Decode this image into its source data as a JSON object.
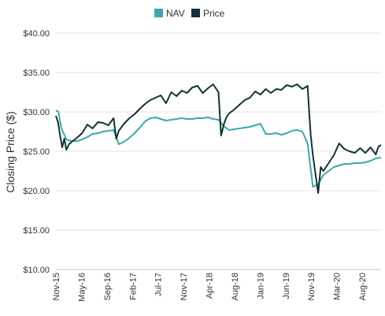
{
  "chart_data": {
    "type": "line",
    "title": "",
    "xlabel": "",
    "ylabel": "Closing Price ($)",
    "ylim": [
      10,
      40
    ],
    "yticks": [
      10,
      15,
      20,
      25,
      30,
      35,
      40
    ],
    "ytick_labels": [
      "$10.00",
      "$15.00",
      "$20.00",
      "$25.00",
      "$30.00",
      "$35.00",
      "$40.00"
    ],
    "x_range": [
      "Nov-15",
      "Jan-21"
    ],
    "xtick_labels": [
      "Nov-15",
      "May-16",
      "Sep-16",
      "Feb-17",
      "Jul-17",
      "Nov-17",
      "Apr-18",
      "Aug-18",
      "Jan-19",
      "Jun-19",
      "Nov-19",
      "Mar-20",
      "Aug-20"
    ],
    "grid": true,
    "legend_position": "top-center",
    "series": [
      {
        "name": "NAV",
        "color": "#3aa8ad",
        "x": [
          0,
          0.5,
          1,
          2,
          3,
          4,
          5,
          6,
          7,
          8,
          9,
          10,
          11,
          12,
          13,
          14,
          15,
          16,
          17,
          18,
          19,
          20,
          21,
          22,
          23,
          24,
          25,
          26,
          27,
          28,
          29,
          30,
          31,
          32,
          33,
          34,
          35,
          36,
          37,
          38,
          39,
          40,
          41,
          42,
          43,
          44,
          45,
          46,
          47,
          48,
          49,
          50,
          51,
          52,
          53,
          54,
          55,
          56,
          57,
          58,
          59,
          60,
          61,
          62
        ],
        "y": [
          30.2,
          30.0,
          28.0,
          26.5,
          26.3,
          26.3,
          26.5,
          26.8,
          27.2,
          27.3,
          27.5,
          27.6,
          27.7,
          25.9,
          26.2,
          26.7,
          27.3,
          28.0,
          28.8,
          29.2,
          29.3,
          29.1,
          28.9,
          29.0,
          29.1,
          29.2,
          29.1,
          29.1,
          29.2,
          29.2,
          29.3,
          29.1,
          29.0,
          28.2,
          27.7,
          27.8,
          27.9,
          28.0,
          28.1,
          28.3,
          28.5,
          27.2,
          27.2,
          27.3,
          27.1,
          27.3,
          27.6,
          27.7,
          27.5,
          26.0,
          20.5,
          20.8,
          22.0,
          22.5,
          23.0,
          23.2,
          23.4,
          23.4,
          23.5,
          23.5,
          23.6,
          23.8,
          24.1,
          24.2
        ]
      },
      {
        "name": "Price",
        "color": "#123237",
        "x": [
          0,
          0.4,
          0.8,
          1.2,
          1.6,
          2,
          2.5,
          3,
          4,
          5,
          6,
          7,
          8,
          9,
          10,
          11,
          11.5,
          12,
          13,
          14,
          15,
          16,
          17,
          18,
          19,
          20,
          21,
          22,
          23,
          24,
          25,
          26,
          27,
          28,
          29,
          30,
          31,
          31.5,
          32,
          32.5,
          33,
          34,
          35,
          36,
          37,
          38,
          39,
          40,
          41,
          42,
          43,
          44,
          45,
          46,
          47,
          48,
          48.3,
          48.6,
          49,
          50,
          50.5,
          51,
          52,
          53,
          54,
          55,
          56,
          57,
          58,
          59,
          60,
          61,
          61.5,
          62
        ],
        "y": [
          29.5,
          28.7,
          27.0,
          25.5,
          26.6,
          25.2,
          25.9,
          26.2,
          26.7,
          27.3,
          28.4,
          27.9,
          28.7,
          28.6,
          28.3,
          29.2,
          26.6,
          27.6,
          28.5,
          29.2,
          29.7,
          30.4,
          31.0,
          31.5,
          31.8,
          32.1,
          31.1,
          32.5,
          32.0,
          32.7,
          32.4,
          33.1,
          33.3,
          32.4,
          33.0,
          33.5,
          32.5,
          27.0,
          28.4,
          29.3,
          29.8,
          30.3,
          30.9,
          31.5,
          31.8,
          32.6,
          32.2,
          32.9,
          32.4,
          32.9,
          32.8,
          33.4,
          33.2,
          33.5,
          32.9,
          33.3,
          30.0,
          27.0,
          24.5,
          19.7,
          23.0,
          22.5,
          23.5,
          24.5,
          26.0,
          25.3,
          25.0,
          24.8,
          25.4,
          24.8,
          25.5,
          24.6,
          25.6,
          25.8
        ]
      }
    ]
  }
}
